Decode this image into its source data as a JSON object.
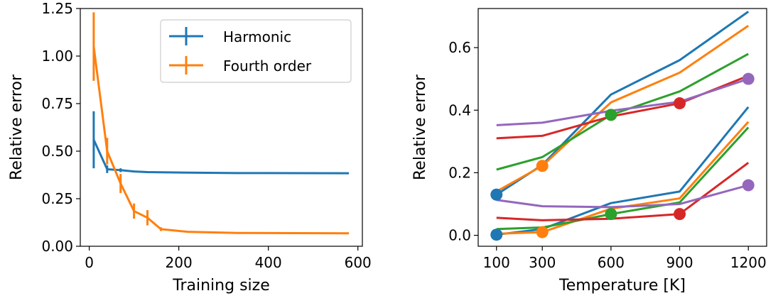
{
  "chart_data": [
    {
      "type": "line",
      "xlabel": "Training size",
      "ylabel": "Relative error",
      "xlim": [
        -20,
        610
      ],
      "ylim": [
        0,
        1.25
      ],
      "xticks": [
        0,
        200,
        400,
        600
      ],
      "yticks": [
        0.0,
        0.25,
        0.5,
        0.75,
        1.0,
        1.25
      ],
      "xtick_labels": [
        "0",
        "200",
        "400",
        "600"
      ],
      "ytick_labels": [
        "0.00",
        "0.25",
        "0.50",
        "0.75",
        "1.00",
        "1.25"
      ],
      "legend_position": "top-right",
      "series": [
        {
          "name": "Harmonic",
          "color": "#1f77b4",
          "x": [
            10,
            40,
            70,
            100,
            130,
            160,
            220,
            330,
            580
          ],
          "y": [
            0.56,
            0.405,
            0.4,
            0.393,
            0.39,
            0.389,
            0.387,
            0.385,
            0.384
          ],
          "yerr": [
            0.15,
            0.02,
            0.01,
            0.005,
            0.003,
            0.002,
            0.001,
            0.001,
            0.001
          ]
        },
        {
          "name": "Fourth order",
          "color": "#ff7f0e",
          "x": [
            10,
            40,
            70,
            100,
            130,
            160,
            220,
            330,
            580
          ],
          "y": [
            1.05,
            0.5,
            0.33,
            0.185,
            0.15,
            0.09,
            0.076,
            0.07,
            0.068
          ],
          "yerr": [
            0.18,
            0.07,
            0.05,
            0.04,
            0.04,
            0.01,
            0.005,
            0.003,
            0.002
          ]
        }
      ]
    },
    {
      "type": "line",
      "xlabel": "Temperature [K]",
      "ylabel": "Relative error",
      "xlim": [
        20,
        1280
      ],
      "ylim": [
        -0.035,
        0.725
      ],
      "xticks": [
        100,
        300,
        600,
        900,
        1200
      ],
      "yticks": [
        0.0,
        0.2,
        0.4,
        0.6
      ],
      "xtick_labels": [
        "100",
        "300",
        "600",
        "900",
        "1200"
      ],
      "ytick_labels": [
        "0.0",
        "0.2",
        "0.4",
        "0.6"
      ],
      "x": [
        100,
        300,
        600,
        900,
        1200
      ],
      "series": [
        {
          "color": "#1f77b4",
          "y": [
            0.13,
            0.225,
            0.45,
            0.56,
            0.715
          ]
        },
        {
          "color": "#ff7f0e",
          "y": [
            0.14,
            0.222,
            0.425,
            0.52,
            0.67
          ]
        },
        {
          "color": "#2ca02c",
          "y": [
            0.21,
            0.25,
            0.385,
            0.46,
            0.58
          ]
        },
        {
          "color": "#d62728",
          "y": [
            0.31,
            0.318,
            0.38,
            0.422,
            0.51
          ]
        },
        {
          "color": "#9467bd",
          "y": [
            0.352,
            0.36,
            0.398,
            0.427,
            0.5
          ]
        },
        {
          "color": "#1f77b4",
          "y": [
            0.002,
            0.02,
            0.103,
            0.14,
            0.41
          ]
        },
        {
          "color": "#ff7f0e",
          "y": [
            0.005,
            0.01,
            0.085,
            0.118,
            0.363
          ]
        },
        {
          "color": "#2ca02c",
          "y": [
            0.02,
            0.025,
            0.068,
            0.105,
            0.345
          ]
        },
        {
          "color": "#d62728",
          "y": [
            0.056,
            0.048,
            0.053,
            0.068,
            0.232
          ]
        },
        {
          "color": "#9467bd",
          "y": [
            0.113,
            0.093,
            0.09,
            0.1,
            0.16
          ]
        }
      ],
      "markers": [
        {
          "x": 100,
          "y": 0.13,
          "color": "#1f77b4"
        },
        {
          "x": 100,
          "y": 0.002,
          "color": "#1f77b4"
        },
        {
          "x": 300,
          "y": 0.222,
          "color": "#ff7f0e"
        },
        {
          "x": 300,
          "y": 0.01,
          "color": "#ff7f0e"
        },
        {
          "x": 600,
          "y": 0.385,
          "color": "#2ca02c"
        },
        {
          "x": 600,
          "y": 0.068,
          "color": "#2ca02c"
        },
        {
          "x": 900,
          "y": 0.422,
          "color": "#d62728"
        },
        {
          "x": 900,
          "y": 0.068,
          "color": "#d62728"
        },
        {
          "x": 1200,
          "y": 0.5,
          "color": "#9467bd"
        },
        {
          "x": 1200,
          "y": 0.16,
          "color": "#9467bd"
        }
      ]
    }
  ]
}
